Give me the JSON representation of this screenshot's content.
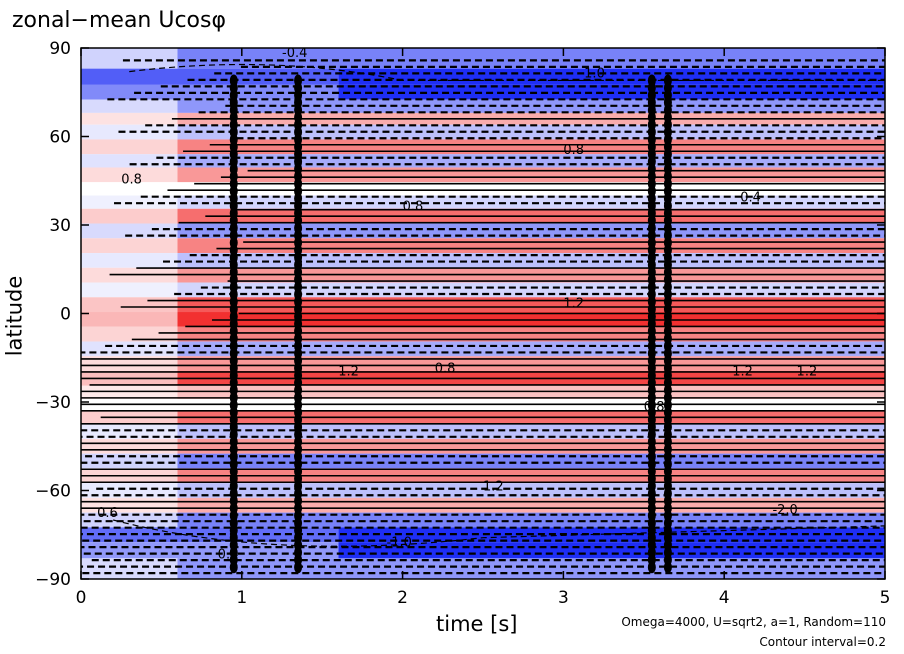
{
  "title": "zonal−mean Ucosφ",
  "chart_data": {
    "type": "heatmap",
    "title": "zonal−mean Ucosφ",
    "xlabel": "time [s]",
    "ylabel": "latitude",
    "xlim": [
      0,
      5
    ],
    "ylim": [
      -90,
      90
    ],
    "x_ticks": [
      "0",
      "1",
      "2",
      "3",
      "4",
      "5"
    ],
    "y_ticks": [
      "90",
      "60",
      "30",
      "0",
      "−30",
      "−60",
      "−90"
    ],
    "colors": {
      "negative": "#1e2ef5",
      "positive": "#f23030",
      "neutral": "#ffffff",
      "contour": "#000000"
    },
    "bands": [
      {
        "lat": 86,
        "value": -0.6
      },
      {
        "lat": 80,
        "value": -2.2
      },
      {
        "lat": 75,
        "value": -1.6
      },
      {
        "lat": 70,
        "value": -0.5
      },
      {
        "lat": 66,
        "value": 0.4
      },
      {
        "lat": 62,
        "value": -0.3
      },
      {
        "lat": 56,
        "value": 0.6
      },
      {
        "lat": 52,
        "value": -0.4
      },
      {
        "lat": 47,
        "value": 0.5
      },
      {
        "lat": 42,
        "value": 0.0
      },
      {
        "lat": 38,
        "value": -0.2
      },
      {
        "lat": 33,
        "value": 0.7
      },
      {
        "lat": 28,
        "value": -0.5
      },
      {
        "lat": 23,
        "value": 0.6
      },
      {
        "lat": 18,
        "value": -0.3
      },
      {
        "lat": 13,
        "value": 0.5
      },
      {
        "lat": 8,
        "value": -0.2
      },
      {
        "lat": 3,
        "value": 0.8
      },
      {
        "lat": -2,
        "value": 1.0
      },
      {
        "lat": -7,
        "value": 0.6
      },
      {
        "lat": -12,
        "value": -0.4
      },
      {
        "lat": -17,
        "value": 0.5
      },
      {
        "lat": -22,
        "value": 0.9
      },
      {
        "lat": -27,
        "value": 0.3
      },
      {
        "lat": -31,
        "value": 0.0
      },
      {
        "lat": -35,
        "value": 0.7
      },
      {
        "lat": -40,
        "value": -0.3
      },
      {
        "lat": -45,
        "value": 0.5
      },
      {
        "lat": -50,
        "value": -0.6
      },
      {
        "lat": -55,
        "value": 0.6
      },
      {
        "lat": -60,
        "value": -0.3
      },
      {
        "lat": -65,
        "value": 0.4
      },
      {
        "lat": -70,
        "value": -0.6
      },
      {
        "lat": -75,
        "value": -2.0
      },
      {
        "lat": -80,
        "value": -1.4
      },
      {
        "lat": -86,
        "value": -0.5
      }
    ],
    "contour_labels": [
      {
        "t": 1.25,
        "lat": 87,
        "text": "-0.4"
      },
      {
        "t": 3.1,
        "lat": 80,
        "text": "-1.0"
      },
      {
        "t": 3.0,
        "lat": 54,
        "text": "0.8"
      },
      {
        "t": 0.25,
        "lat": 44,
        "text": "0.8"
      },
      {
        "t": 2.0,
        "lat": 35,
        "text": "0.8"
      },
      {
        "t": 4.1,
        "lat": 38,
        "text": "0.4"
      },
      {
        "t": 3.0,
        "lat": 2,
        "text": "1.2"
      },
      {
        "t": 1.6,
        "lat": -21,
        "text": "1.2"
      },
      {
        "t": 4.05,
        "lat": -21,
        "text": "1.2"
      },
      {
        "t": 4.45,
        "lat": -21,
        "text": "1.2"
      },
      {
        "t": 2.2,
        "lat": -20,
        "text": "0.8"
      },
      {
        "t": 3.5,
        "lat": -33,
        "text": "0.8"
      },
      {
        "t": 2.5,
        "lat": -60,
        "text": "1.2"
      },
      {
        "t": 4.3,
        "lat": -68,
        "text": "-2.0"
      },
      {
        "t": 0.1,
        "lat": -69,
        "text": "0.6"
      },
      {
        "t": 0.85,
        "lat": -83,
        "text": "0.4"
      },
      {
        "t": 1.9,
        "lat": -79,
        "text": "-1.0"
      }
    ]
  },
  "footer": {
    "params": "Omega=4000, U=sqrt2, a=1, Random=110",
    "interval": "Contour interval=0.2"
  }
}
